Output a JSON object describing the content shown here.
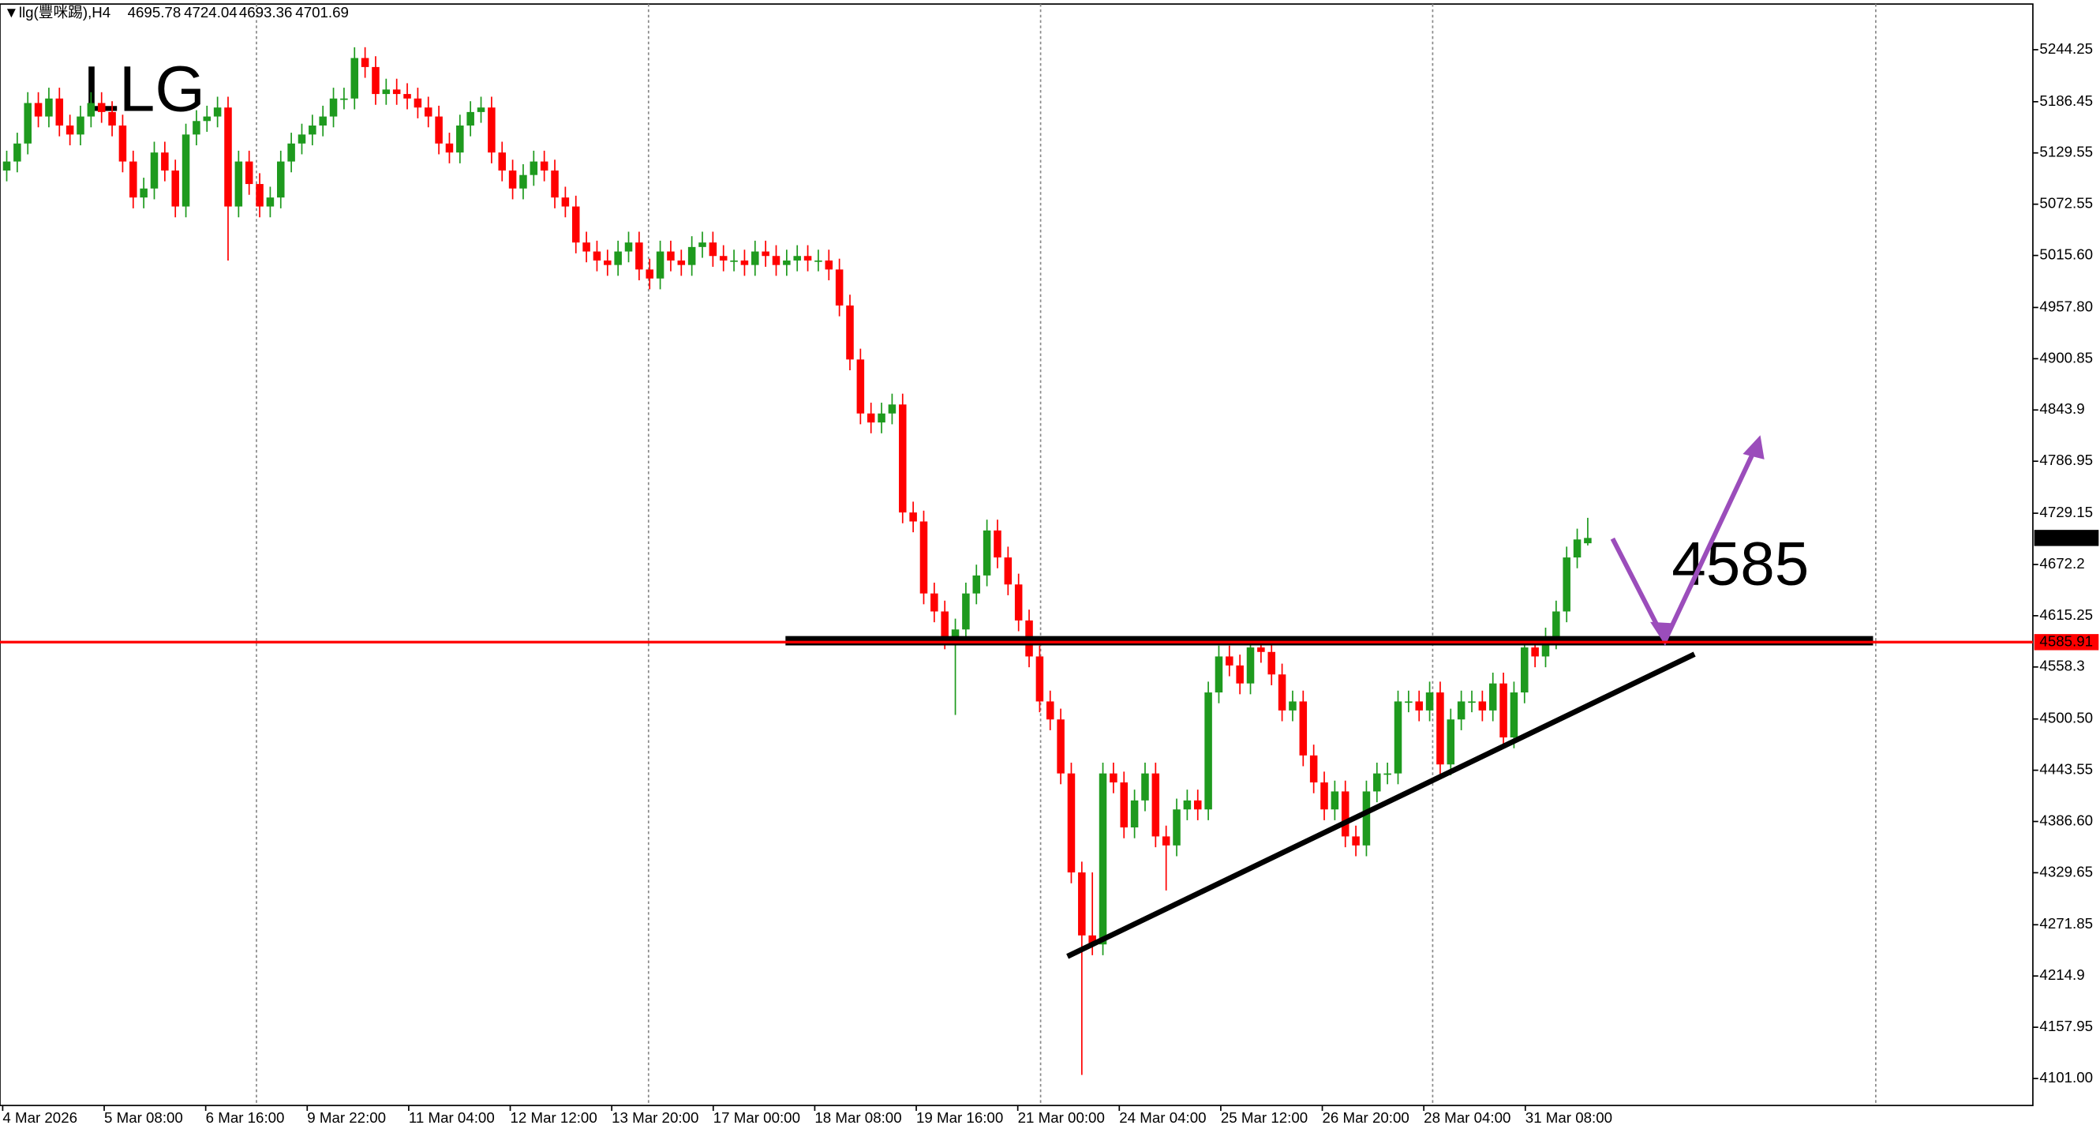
{
  "chart_data": {
    "type": "candlestick",
    "title": "llg(豐咪踢),H4",
    "annotations": [
      "LLG",
      "4585"
    ],
    "up_color": "#1e9a1e",
    "down_color": "#ff0000",
    "level": {
      "value": 4585.91,
      "color": "#ff0000"
    },
    "ylim": [
      4071,
      5295
    ],
    "yticks": [
      5244.25,
      5186.45,
      5129.55,
      5072.55,
      {
        "value": 5015.6,
        "label": "5015.60"
      },
      {
        "value": 4957.8,
        "label": "4957.80"
      },
      4900.85,
      4843.9,
      4786.95,
      4729.15,
      4672.2,
      4615.25,
      4558.3,
      {
        "value": 4500.5,
        "label": "4500.50"
      },
      4443.55,
      {
        "value": 4386.6,
        "label": "4386.60"
      },
      4329.65,
      4271.85,
      4214.9,
      4157.95,
      {
        "value": 4101,
        "label": "4101.00"
      }
    ],
    "x_labels": [
      "4 Mar 2026",
      "5 Mar 08:00",
      "6 Mar 16:00",
      "9 Mar 22:00",
      "11 Mar 04:00",
      "12 Mar 12:00",
      "13 Mar 20:00",
      "17 Mar 00:00",
      "18 Mar 08:00",
      "19 Mar 16:00",
      "21 Mar 00:00",
      "24 Mar 04:00",
      "25 Mar 12:00",
      "26 Mar 20:00",
      "28 Mar 04:00",
      "31 Mar 08:00"
    ],
    "candles": [
      [
        5110,
        5132,
        5098,
        5120
      ],
      [
        5120,
        5152,
        5108,
        5140
      ],
      [
        5140,
        5197,
        5128,
        5185
      ],
      [
        5185,
        5197,
        5158,
        5170
      ],
      [
        5170,
        5202,
        5158,
        5190
      ],
      [
        5190,
        5202,
        5148,
        5160
      ],
      [
        5160,
        5172,
        5138,
        5150
      ],
      [
        5150,
        5182,
        5138,
        5170
      ],
      [
        5170,
        5197,
        5158,
        5185
      ],
      [
        5185,
        5197,
        5163,
        5175
      ],
      [
        5175,
        5187,
        5148,
        5160
      ],
      [
        5160,
        5172,
        5108,
        5120
      ],
      [
        5120,
        5132,
        5068,
        5080
      ],
      [
        5080,
        5102,
        5068,
        5090
      ],
      [
        5090,
        5142,
        5078,
        5130
      ],
      [
        5130,
        5142,
        5098,
        5110
      ],
      [
        5110,
        5122,
        5058,
        5070
      ],
      [
        5070,
        5162,
        5058,
        5150
      ],
      [
        5150,
        5177,
        5138,
        5165
      ],
      [
        5165,
        5182,
        5153,
        5170
      ],
      [
        5170,
        5192,
        5158,
        5180
      ],
      [
        5180,
        5192,
        5010,
        5070
      ],
      [
        5070,
        5132,
        5058,
        5120
      ],
      [
        5120,
        5132,
        5083,
        5095
      ],
      [
        5095,
        5107,
        5058,
        5070
      ],
      [
        5070,
        5092,
        5058,
        5080
      ],
      [
        5080,
        5132,
        5068,
        5120
      ],
      [
        5120,
        5152,
        5108,
        5140
      ],
      [
        5140,
        5162,
        5128,
        5150
      ],
      [
        5150,
        5172,
        5138,
        5160
      ],
      [
        5160,
        5182,
        5148,
        5170
      ],
      [
        5170,
        5202,
        5158,
        5190
      ],
      [
        5190,
        5202,
        5178,
        5190
      ],
      [
        5190,
        5247,
        5178,
        5235
      ],
      [
        5235,
        5247,
        5213,
        5225
      ],
      [
        5225,
        5237,
        5183,
        5195
      ],
      [
        5195,
        5212,
        5183,
        5200
      ],
      [
        5200,
        5212,
        5183,
        5195
      ],
      [
        5195,
        5207,
        5178,
        5190
      ],
      [
        5190,
        5202,
        5168,
        5180
      ],
      [
        5180,
        5192,
        5158,
        5170
      ],
      [
        5170,
        5182,
        5128,
        5140
      ],
      [
        5140,
        5152,
        5118,
        5130
      ],
      [
        5130,
        5172,
        5118,
        5160
      ],
      [
        5160,
        5187,
        5148,
        5175
      ],
      [
        5175,
        5192,
        5163,
        5180
      ],
      [
        5180,
        5192,
        5118,
        5130
      ],
      [
        5130,
        5142,
        5098,
        5110
      ],
      [
        5110,
        5122,
        5078,
        5090
      ],
      [
        5090,
        5117,
        5078,
        5105
      ],
      [
        5105,
        5132,
        5093,
        5120
      ],
      [
        5120,
        5132,
        5098,
        5110
      ],
      [
        5110,
        5122,
        5068,
        5080
      ],
      [
        5080,
        5092,
        5058,
        5070
      ],
      [
        5070,
        5082,
        5018,
        5030
      ],
      [
        5030,
        5042,
        5008,
        5020
      ],
      [
        5020,
        5032,
        4998,
        5010
      ],
      [
        5010,
        5022,
        4993,
        5005
      ],
      [
        5005,
        5032,
        4993,
        5020
      ],
      [
        5020,
        5042,
        5008,
        5030
      ],
      [
        5030,
        5042,
        4988,
        5000
      ],
      [
        5000,
        5012,
        4978,
        4990
      ],
      [
        4990,
        5032,
        4978,
        5020
      ],
      [
        5020,
        5032,
        4998,
        5010
      ],
      [
        5010,
        5022,
        4993,
        5005
      ],
      [
        5005,
        5037,
        4993,
        5025
      ],
      [
        5025,
        5042,
        5013,
        5030
      ],
      [
        5030,
        5042,
        5003,
        5015
      ],
      [
        5015,
        5027,
        4998,
        5010
      ],
      [
        5010,
        5022,
        4998,
        5010
      ],
      [
        5010,
        5022,
        4993,
        5005
      ],
      [
        5005,
        5032,
        4993,
        5020
      ],
      [
        5020,
        5032,
        5003,
        5015
      ],
      [
        5015,
        5027,
        4993,
        5005
      ],
      [
        5005,
        5022,
        4993,
        5010
      ],
      [
        5010,
        5027,
        4998,
        5015
      ],
      [
        5015,
        5027,
        4998,
        5010
      ],
      [
        5010,
        5022,
        4998,
        5010
      ],
      [
        5010,
        5022,
        4988,
        5000
      ],
      [
        5000,
        5012,
        4948,
        4960
      ],
      [
        4960,
        4972,
        4888,
        4900
      ],
      [
        4900,
        4912,
        4828,
        4840
      ],
      [
        4840,
        4852,
        4818,
        4830
      ],
      [
        4830,
        4852,
        4818,
        4840
      ],
      [
        4840,
        4862,
        4828,
        4850
      ],
      [
        4850,
        4862,
        4718,
        4730
      ],
      [
        4730,
        4742,
        4708,
        4720
      ],
      [
        4720,
        4732,
        4628,
        4640
      ],
      [
        4640,
        4652,
        4608,
        4620
      ],
      [
        4620,
        4632,
        4578,
        4590
      ],
      [
        4590,
        4612,
        4505,
        4600
      ],
      [
        4600,
        4652,
        4588,
        4640
      ],
      [
        4640,
        4672,
        4628,
        4660
      ],
      [
        4660,
        4722,
        4648,
        4710
      ],
      [
        4710,
        4722,
        4668,
        4680
      ],
      [
        4680,
        4692,
        4638,
        4650
      ],
      [
        4650,
        4662,
        4598,
        4610
      ],
      [
        4610,
        4622,
        4558,
        4570
      ],
      [
        4570,
        4582,
        4508,
        4520
      ],
      [
        4520,
        4532,
        4488,
        4500
      ],
      [
        4500,
        4512,
        4428,
        4440
      ],
      [
        4440,
        4452,
        4318,
        4330
      ],
      [
        4330,
        4342,
        4105,
        4260
      ],
      [
        4260,
        4330,
        4238,
        4250
      ],
      [
        4250,
        4452,
        4238,
        4440
      ],
      [
        4440,
        4452,
        4418,
        4430
      ],
      [
        4430,
        4442,
        4368,
        4380
      ],
      [
        4380,
        4422,
        4368,
        4410
      ],
      [
        4410,
        4452,
        4398,
        4440
      ],
      [
        4440,
        4452,
        4358,
        4370
      ],
      [
        4370,
        4382,
        4310,
        4360
      ],
      [
        4360,
        4412,
        4348,
        4400
      ],
      [
        4400,
        4422,
        4388,
        4410
      ],
      [
        4410,
        4422,
        4388,
        4400
      ],
      [
        4400,
        4542,
        4388,
        4530
      ],
      [
        4530,
        4582,
        4518,
        4570
      ],
      [
        4570,
        4582,
        4548,
        4560
      ],
      [
        4560,
        4572,
        4528,
        4540
      ],
      [
        4540,
        4592,
        4528,
        4580
      ],
      [
        4580,
        4592,
        4563,
        4575
      ],
      [
        4575,
        4587,
        4538,
        4550
      ],
      [
        4550,
        4562,
        4498,
        4510
      ],
      [
        4510,
        4532,
        4498,
        4520
      ],
      [
        4520,
        4532,
        4448,
        4460
      ],
      [
        4460,
        4472,
        4418,
        4430
      ],
      [
        4430,
        4442,
        4388,
        4400
      ],
      [
        4400,
        4432,
        4388,
        4420
      ],
      [
        4420,
        4432,
        4358,
        4370
      ],
      [
        4370,
        4382,
        4348,
        4360
      ],
      [
        4360,
        4432,
        4348,
        4420
      ],
      [
        4420,
        4452,
        4408,
        4440
      ],
      [
        4440,
        4452,
        4428,
        4440
      ],
      [
        4440,
        4532,
        4428,
        4520
      ],
      [
        4520,
        4532,
        4508,
        4520
      ],
      [
        4520,
        4532,
        4498,
        4510
      ],
      [
        4510,
        4542,
        4498,
        4530
      ],
      [
        4530,
        4542,
        4438,
        4450
      ],
      [
        4450,
        4512,
        4438,
        4500
      ],
      [
        4500,
        4532,
        4488,
        4520
      ],
      [
        4520,
        4532,
        4508,
        4520
      ],
      [
        4520,
        4532,
        4498,
        4510
      ],
      [
        4510,
        4552,
        4498,
        4540
      ],
      [
        4540,
        4552,
        4468,
        4480
      ],
      [
        4480,
        4542,
        4468,
        4530
      ],
      [
        4530,
        4592,
        4518,
        4580
      ],
      [
        4580,
        4592,
        4558,
        4570
      ],
      [
        4570,
        4602,
        4558,
        4590
      ],
      [
        4590,
        4632,
        4578,
        4620
      ],
      [
        4620,
        4692,
        4608,
        4680
      ],
      [
        4680,
        4712,
        4668,
        4700
      ],
      [
        4695.78,
        4724.04,
        4693.36,
        4701.69
      ]
    ]
  }
}
